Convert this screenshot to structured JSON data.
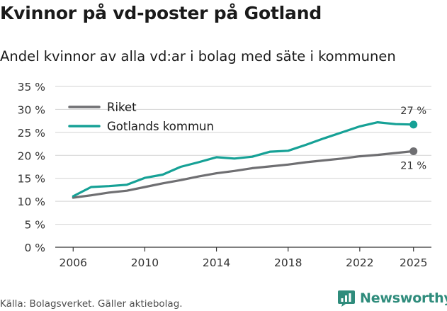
{
  "header": {
    "title": "Kvinnor på vd-poster på Gotland",
    "subtitle": "Andel kvinnor av alla vd:ar i bolag med säte i kommunen"
  },
  "footer": {
    "source": "Källa: Bolagsverket. Gäller aktiebolag.",
    "brand": "Newsworthy"
  },
  "colors": {
    "riket": "#6f6f72",
    "gotland": "#16a196",
    "grid": "#d3d3d3",
    "axis": "#333333",
    "brand": "#2f8c7c"
  },
  "chart_data": {
    "type": "line",
    "title": "Kvinnor på vd-poster på Gotland",
    "subtitle": "Andel kvinnor av alla vd:ar i bolag med säte i kommunen",
    "xlabel": "",
    "ylabel": "",
    "x": [
      2006,
      2007,
      2008,
      2009,
      2010,
      2011,
      2012,
      2013,
      2014,
      2015,
      2016,
      2017,
      2018,
      2019,
      2020,
      2021,
      2022,
      2023,
      2024,
      2025
    ],
    "xlim": [
      2005,
      2026
    ],
    "ylim": [
      0,
      35
    ],
    "xticks": [
      2006,
      2010,
      2014,
      2018,
      2022,
      2025
    ],
    "yticks": [
      0,
      5,
      10,
      15,
      20,
      25,
      30,
      35
    ],
    "ytick_labels": [
      "0 %",
      "5 %",
      "10 %",
      "15 %",
      "20 %",
      "25 %",
      "30 %",
      "35 %"
    ],
    "grid": true,
    "legend_position": "top-left",
    "series": [
      {
        "name": "Riket",
        "color": "#6f6f72",
        "values": [
          10.8,
          11.3,
          11.9,
          12.3,
          13.1,
          13.9,
          14.6,
          15.4,
          16.1,
          16.6,
          17.2,
          17.6,
          18.0,
          18.5,
          18.9,
          19.3,
          19.8,
          20.1,
          20.5,
          20.9
        ],
        "end_label": "21 %"
      },
      {
        "name": "Gotlands kommun",
        "color": "#16a196",
        "values": [
          11.1,
          13.1,
          13.3,
          13.6,
          15.1,
          15.8,
          17.5,
          18.5,
          19.6,
          19.3,
          19.7,
          20.8,
          21.0,
          22.3,
          23.7,
          25.0,
          26.3,
          27.2,
          26.8,
          26.7
        ],
        "end_label": "27 %"
      }
    ]
  }
}
